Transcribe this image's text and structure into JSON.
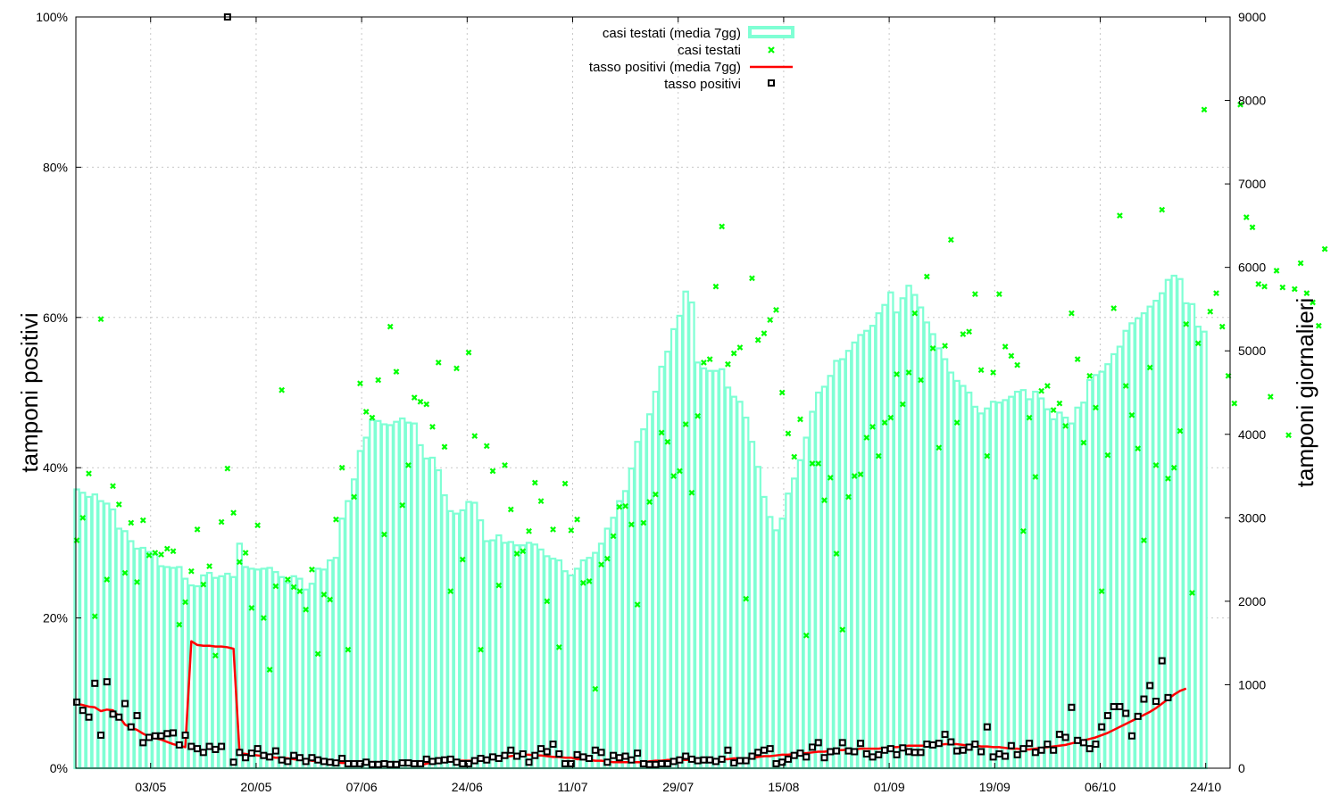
{
  "chart_data": {
    "type": "bar",
    "ylabel": "tamponi positivi",
    "y2label": "tamponi giornalieri",
    "x_ticks": [
      "03/05",
      "20/05",
      "07/06",
      "24/06",
      "11/07",
      "29/07",
      "15/08",
      "01/09",
      "19/09",
      "06/10",
      "24/10"
    ],
    "y_ticks": [
      "0%",
      "20%",
      "40%",
      "60%",
      "80%",
      "100%"
    ],
    "y2_ticks": [
      "0",
      "1000",
      "2000",
      "3000",
      "4000",
      "5000",
      "6000",
      "7000",
      "8000",
      "9000"
    ],
    "ylim": [
      0,
      100
    ],
    "y2lim": [
      0,
      9000
    ],
    "grid": true,
    "legend_position": "top-center",
    "colors": {
      "bars": "#7fffd4",
      "cases_points": "#00ff00",
      "rate_line": "#ff0000",
      "rate_points": "#000000"
    },
    "series": [
      {
        "name": "casi testati (media 7gg)",
        "type": "bar",
        "axis": "y2",
        "values": [
          3340,
          3300,
          3250,
          3280,
          3200,
          3170,
          3100,
          2870,
          2840,
          2720,
          2630,
          2640,
          2590,
          2560,
          2420,
          2410,
          2400,
          2410,
          2270,
          2190,
          2180,
          2310,
          2340,
          2280,
          2300,
          2330,
          2290,
          2690,
          2410,
          2390,
          2380,
          2390,
          2400,
          2350,
          2290,
          2220,
          2300,
          2270,
          2140,
          2210,
          2390,
          2380,
          2490,
          2520,
          2990,
          3200,
          3460,
          3800,
          3960,
          4170,
          4160,
          4120,
          4110,
          4150,
          4190,
          4140,
          4130,
          3870,
          3710,
          3720,
          3570,
          3270,
          3080,
          3050,
          3090,
          3190,
          3180,
          2970,
          2720,
          2730,
          2790,
          2700,
          2710,
          2670,
          2670,
          2700,
          2680,
          2620,
          2540,
          2510,
          2490,
          2360,
          2310,
          2390,
          2490,
          2520,
          2580,
          2690,
          2870,
          3000,
          3200,
          3320,
          3590,
          3910,
          4060,
          4240,
          4510,
          4810,
          4990,
          5260,
          5420,
          5710,
          5580,
          4860,
          4790,
          4760,
          4760,
          4780,
          4560,
          4450,
          4390,
          4200,
          3910,
          3610,
          3250,
          3010,
          2850,
          2990,
          3290,
          3470,
          3690,
          3960,
          4270,
          4500,
          4570,
          4700,
          4880,
          4900,
          5000,
          5100,
          5190,
          5240,
          5300,
          5450,
          5550,
          5700,
          5460,
          5630,
          5780,
          5670,
          5520,
          5340,
          5200,
          5030,
          4900,
          4740,
          4640,
          4580,
          4500,
          4330,
          4250,
          4310,
          4390,
          4380,
          4410,
          4450,
          4510,
          4530,
          4420,
          4510,
          4430,
          4300,
          4180,
          4260,
          4200,
          4130,
          4320,
          4380,
          4650,
          4710,
          4750,
          4840,
          4960,
          5050,
          5240,
          5330,
          5390,
          5450,
          5530,
          5600,
          5690,
          5850,
          5900,
          5860,
          5570,
          5560,
          5290,
          5230
        ]
      },
      {
        "name": "casi testati",
        "type": "scatter",
        "axis": "y2",
        "values": [
          2730,
          3000,
          3530,
          1820,
          5380,
          2260,
          3380,
          3160,
          2340,
          2940,
          2230,
          2970,
          2550,
          2580,
          2560,
          2630,
          2600,
          1720,
          1990,
          2360,
          2860,
          2200,
          2420,
          1350,
          2950,
          3590,
          3060,
          2470,
          2580,
          1920,
          2910,
          1800,
          1180,
          2180,
          4530,
          2260,
          2170,
          2120,
          1900,
          2380,
          1370,
          2080,
          2020,
          2980,
          3600,
          1420,
          3250,
          4610,
          4270,
          4200,
          4650,
          2800,
          5290,
          4750,
          3150,
          3630,
          4440,
          4390,
          4360,
          4090,
          4860,
          3850,
          2120,
          4790,
          2500,
          4980,
          3980,
          1420,
          3860,
          3560,
          2190,
          3630,
          3100,
          2570,
          2600,
          2840,
          3420,
          3200,
          2000,
          2860,
          1450,
          3410,
          2850,
          2980,
          2220,
          2240,
          950,
          2440,
          2510,
          2780,
          3130,
          3140,
          2920,
          1960,
          2940,
          3190,
          3280,
          4020,
          3910,
          3500,
          3560,
          4120,
          3300,
          4220,
          4860,
          4900,
          5770,
          6490,
          4840,
          4970,
          5040,
          2030,
          5870,
          5130,
          5210,
          5370,
          5490,
          4500,
          4010,
          3730,
          4180,
          1590,
          3650,
          3650,
          3210,
          3480,
          2570,
          1660,
          3250,
          3500,
          3520,
          3960,
          4090,
          3740,
          4140,
          4200,
          4720,
          4360,
          4740,
          5450,
          4650,
          5890,
          5030,
          3840,
          5060,
          6330,
          4140,
          5200,
          5230,
          5680,
          4770,
          3740,
          4740,
          5680,
          5050,
          4940,
          4830,
          2840,
          4200,
          3490,
          4520,
          4580,
          4290,
          4370,
          4100,
          5450,
          4900,
          3900,
          4700,
          4320,
          2120,
          3750,
          5510,
          6620,
          4580,
          4230,
          3830,
          2730,
          4800,
          3630,
          6690,
          3470,
          3600,
          4040,
          5320,
          2100,
          5090,
          7890,
          5470,
          5690,
          5290,
          4700,
          4370,
          7950,
          6600,
          6480,
          5800,
          5770,
          4450,
          5960,
          5760,
          3990,
          5740,
          6050,
          5690,
          5580,
          5300,
          6220
        ]
      },
      {
        "name": "tasso positivi (media 7gg)",
        "type": "line",
        "axis": "y",
        "values": [
          8.6,
          8.4,
          8.2,
          8.1,
          7.6,
          7.8,
          7.7,
          6.9,
          5.8,
          5.4,
          5.1,
          4.6,
          4.2,
          4.0,
          3.8,
          3.5,
          3.2,
          3.0,
          2.8,
          16.9,
          16.4,
          16.3,
          16.3,
          16.2,
          16.2,
          16.1,
          15.9,
          2.0,
          1.9,
          1.8,
          1.7,
          1.6,
          1.5,
          1.4,
          1.4,
          1.3,
          1.2,
          1.1,
          1.1,
          1.0,
          0.9,
          0.8,
          0.8,
          0.8,
          0.7,
          0.7,
          0.6,
          0.6,
          0.5,
          0.5,
          0.4,
          0.4,
          0.4,
          0.4,
          0.4,
          0.4,
          0.4,
          0.4,
          0.6,
          0.8,
          0.8,
          0.8,
          0.9,
          1.0,
          1.0,
          1.0,
          1.0,
          1.0,
          1.1,
          1.3,
          1.4,
          1.5,
          1.6,
          1.7,
          1.8,
          1.8,
          1.7,
          1.7,
          1.6,
          1.5,
          1.5,
          1.4,
          1.4,
          1.2,
          1.2,
          1.1,
          1.0,
          1.0,
          0.9,
          0.8,
          0.8,
          0.8,
          0.8,
          0.8,
          0.8,
          0.9,
          1.0,
          1.0,
          1.1,
          1.1,
          1.1,
          1.1,
          1.1,
          1.1,
          1.1,
          1.1,
          1.1,
          1.2,
          1.2,
          1.3,
          1.3,
          1.3,
          1.4,
          1.5,
          1.6,
          1.6,
          1.7,
          1.8,
          1.8,
          1.9,
          2.0,
          2.0,
          2.1,
          2.2,
          2.2,
          2.3,
          2.4,
          2.4,
          2.5,
          2.5,
          2.6,
          2.6,
          2.6,
          2.6,
          2.7,
          2.8,
          2.8,
          2.9,
          3.0,
          3.0,
          3.0,
          3.0,
          3.1,
          3.1,
          3.2,
          3.2,
          3.2,
          3.1,
          3.0,
          3.0,
          2.9,
          2.9,
          2.8,
          2.8,
          2.7,
          2.6,
          2.6,
          2.5,
          2.5,
          2.6,
          2.7,
          2.8,
          2.9,
          3.0,
          3.1,
          3.3,
          3.5,
          3.7,
          3.9,
          4.1,
          4.4,
          4.7,
          5.1,
          5.5,
          5.9,
          6.3,
          6.7,
          7.1,
          7.5,
          8.0,
          8.6,
          9.2,
          9.8,
          10.3,
          10.6
        ]
      },
      {
        "name": "tasso positivi",
        "type": "scatter",
        "axis": "y",
        "values": [
          8.8,
          7.7,
          6.8,
          11.3,
          4.4,
          11.5,
          7.2,
          6.8,
          8.6,
          5.5,
          7.0,
          3.4,
          4.1,
          4.3,
          4.3,
          4.6,
          4.7,
          3.1,
          4.4,
          2.9,
          2.6,
          2.1,
          2.9,
          2.5,
          2.9,
          100,
          0.8,
          2.1,
          1.4,
          2.0,
          2.6,
          1.7,
          1.5,
          2.3,
          1.1,
          0.9,
          1.7,
          1.4,
          0.9,
          1.4,
          1.1,
          0.9,
          0.8,
          0.7,
          1.3,
          0.6,
          0.6,
          0.6,
          0.8,
          0.5,
          0.5,
          0.6,
          0.5,
          0.5,
          0.7,
          0.7,
          0.6,
          0.6,
          1.2,
          0.9,
          1.0,
          1.1,
          1.2,
          0.8,
          0.6,
          0.6,
          1.0,
          1.3,
          1.1,
          1.5,
          1.3,
          1.7,
          2.4,
          1.6,
          1.9,
          0.8,
          1.7,
          2.6,
          2.2,
          3.2,
          1.9,
          0.6,
          0.6,
          1.8,
          1.5,
          1.3,
          2.4,
          2.1,
          0.8,
          1.7,
          1.4,
          1.6,
          1.1,
          2.0,
          0.6,
          0.5,
          0.5,
          0.6,
          0.6,
          0.9,
          1.1,
          1.6,
          1.2,
          1.0,
          1.1,
          1.1,
          0.9,
          1.2,
          2.4,
          0.7,
          1.0,
          1.0,
          1.6,
          2.1,
          2.4,
          2.6,
          0.6,
          0.8,
          1.2,
          1.7,
          2.0,
          1.5,
          2.8,
          3.4,
          1.4,
          2.2,
          2.3,
          3.4,
          2.3,
          2.2,
          3.3,
          1.9,
          1.5,
          1.8,
          2.4,
          2.6,
          1.8,
          2.7,
          2.2,
          2.1,
          2.1,
          3.2,
          3.1,
          3.3,
          4.5,
          3.5,
          2.3,
          2.4,
          2.8,
          3.2,
          2.2,
          5.5,
          1.5,
          1.9,
          1.6,
          3.0,
          1.8,
          2.6,
          3.3,
          2.1,
          2.4,
          3.2,
          2.4,
          4.5,
          4.1,
          8.1,
          3.7,
          3.4,
          2.6,
          3.2,
          5.5,
          7.0,
          8.2,
          8.2,
          7.3,
          4.3,
          6.9,
          9.2,
          11.0,
          8.9,
          14.3,
          9.4
        ]
      }
    ]
  }
}
